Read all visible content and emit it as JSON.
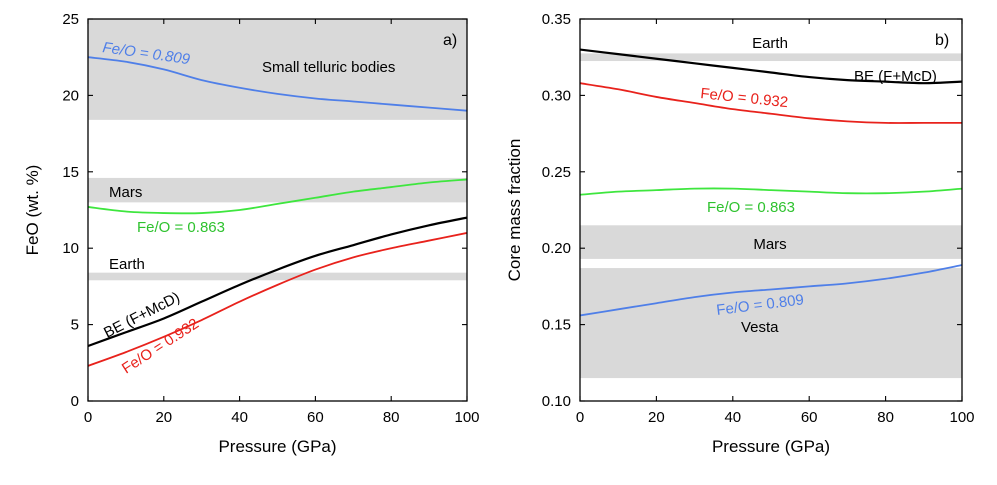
{
  "chart_data": [
    {
      "type": "line",
      "panel_label": "a)",
      "xlabel": "Pressure (GPa)",
      "ylabel": "FeO (wt. %)",
      "xlim": [
        0,
        100
      ],
      "ylim": [
        0,
        25
      ],
      "xticks": [
        0,
        20,
        40,
        60,
        80,
        100
      ],
      "yticks": [
        0,
        5,
        10,
        15,
        20,
        25
      ],
      "bands": [
        {
          "name": "Small telluric bodies",
          "from": 18.4,
          "to": 25,
          "color": "#d9d9d9"
        },
        {
          "name": "Mars",
          "from": 13.0,
          "to": 14.6,
          "color": "#d9d9d9"
        },
        {
          "name": "Earth",
          "from": 7.9,
          "to": 8.4,
          "color": "#d9d9d9"
        }
      ],
      "series": [
        {
          "name": "Fe/O = 0.809",
          "color": "#4f7fe8",
          "x": [
            0,
            10,
            20,
            30,
            40,
            50,
            60,
            70,
            80,
            90,
            100
          ],
          "y": [
            22.5,
            22.2,
            21.7,
            21.0,
            20.5,
            20.1,
            19.8,
            19.6,
            19.4,
            19.2,
            19.0
          ]
        },
        {
          "name": "Fe/O = 0.863",
          "color": "#3ee63e",
          "x": [
            0,
            10,
            20,
            30,
            40,
            50,
            60,
            70,
            80,
            90,
            100
          ],
          "y": [
            12.7,
            12.4,
            12.3,
            12.3,
            12.5,
            12.9,
            13.3,
            13.7,
            14.0,
            14.3,
            14.5
          ]
        },
        {
          "name": "BE (F+McD)",
          "color": "#000000",
          "x": [
            0,
            10,
            20,
            30,
            40,
            50,
            60,
            70,
            80,
            90,
            100
          ],
          "y": [
            3.6,
            4.5,
            5.4,
            6.5,
            7.6,
            8.6,
            9.5,
            10.2,
            10.9,
            11.5,
            12.0
          ]
        },
        {
          "name": "Fe/O = 0.932",
          "color": "#e8221c",
          "x": [
            0,
            10,
            20,
            30,
            40,
            50,
            60,
            70,
            80,
            90,
            100
          ],
          "y": [
            2.3,
            3.2,
            4.2,
            5.3,
            6.5,
            7.6,
            8.6,
            9.4,
            10.0,
            10.5,
            11.0
          ]
        }
      ],
      "annotations": [
        {
          "text": "Fe/O = 0.809",
          "color": "#4f7fe8"
        },
        {
          "text": "Small telluric bodies",
          "color": "#000000"
        },
        {
          "text": "Mars",
          "color": "#000000"
        },
        {
          "text": "Fe/O = 0.863",
          "color": "#2fc22f"
        },
        {
          "text": "Earth",
          "color": "#000000"
        },
        {
          "text": "BE (F+McD)",
          "color": "#000000"
        },
        {
          "text": "Fe/O = 0.932",
          "color": "#e8221c"
        }
      ]
    },
    {
      "type": "line",
      "panel_label": "b)",
      "xlabel": "Pressure (GPa)",
      "ylabel": "Core mass fraction",
      "xlim": [
        0,
        100
      ],
      "ylim": [
        0.1,
        0.35
      ],
      "xticks": [
        0,
        20,
        40,
        60,
        80,
        100
      ],
      "yticks": [
        0.1,
        0.15,
        0.2,
        0.25,
        0.3,
        0.35
      ],
      "ytick_labels": [
        "0.10",
        "0.15",
        "0.20",
        "0.25",
        "0.30",
        "0.35"
      ],
      "bands": [
        {
          "name": "Earth",
          "from": 0.3225,
          "to": 0.3275,
          "color": "#d9d9d9"
        },
        {
          "name": "Mars",
          "from": 0.193,
          "to": 0.215,
          "color": "#d9d9d9"
        },
        {
          "name": "Vesta",
          "from": 0.115,
          "to": 0.187,
          "color": "#d9d9d9"
        }
      ],
      "series": [
        {
          "name": "BE (F+McD)",
          "color": "#000000",
          "x": [
            0,
            10,
            20,
            30,
            40,
            50,
            60,
            70,
            80,
            90,
            100
          ],
          "y": [
            0.33,
            0.327,
            0.324,
            0.321,
            0.318,
            0.315,
            0.312,
            0.31,
            0.309,
            0.308,
            0.309
          ]
        },
        {
          "name": "Fe/O = 0.932",
          "color": "#e8221c",
          "x": [
            0,
            10,
            20,
            30,
            40,
            50,
            60,
            70,
            80,
            90,
            100
          ],
          "y": [
            0.308,
            0.304,
            0.299,
            0.295,
            0.291,
            0.288,
            0.285,
            0.283,
            0.282,
            0.282,
            0.282
          ]
        },
        {
          "name": "Fe/O = 0.863",
          "color": "#3ee63e",
          "x": [
            0,
            10,
            20,
            30,
            40,
            50,
            60,
            70,
            80,
            90,
            100
          ],
          "y": [
            0.235,
            0.237,
            0.238,
            0.239,
            0.239,
            0.238,
            0.237,
            0.236,
            0.236,
            0.237,
            0.239
          ]
        },
        {
          "name": "Fe/O = 0.809",
          "color": "#4f7fe8",
          "x": [
            0,
            10,
            20,
            30,
            40,
            50,
            60,
            70,
            80,
            90,
            100
          ],
          "y": [
            0.156,
            0.16,
            0.164,
            0.168,
            0.171,
            0.173,
            0.175,
            0.177,
            0.18,
            0.184,
            0.189
          ]
        }
      ],
      "annotations": [
        {
          "text": "Earth",
          "color": "#000000"
        },
        {
          "text": "BE (F+McD)",
          "color": "#000000"
        },
        {
          "text": "Fe/O = 0.932",
          "color": "#e8221c"
        },
        {
          "text": "Fe/O = 0.863",
          "color": "#2fc22f"
        },
        {
          "text": "Mars",
          "color": "#000000"
        },
        {
          "text": "Fe/O = 0.809",
          "color": "#4f7fe8"
        },
        {
          "text": "Vesta",
          "color": "#000000"
        }
      ]
    }
  ]
}
